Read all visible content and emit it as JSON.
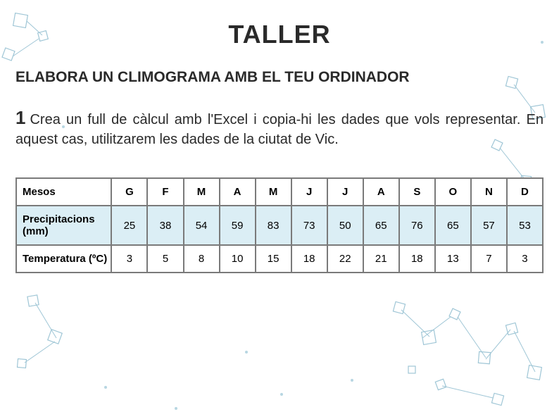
{
  "title": {
    "text": "TALLER",
    "fontsize": 36,
    "color": "#2a2a2a"
  },
  "subtitle": {
    "text": "ELABORA UN CLIMOGRAMA AMB EL TEU ORDINADOR",
    "fontsize": 21,
    "color": "#2a2a2a"
  },
  "step": {
    "num": "1",
    "num_fontsize": 26,
    "num_color": "#2a2a2a",
    "body": "Crea un full de càlcul amb l'Excel i copia-hi les dades que vols representar. En aquest cas, utilitzarem les dades de la ciutat de Vic.",
    "body_fontsize": 20,
    "body_color": "#2a2a2a"
  },
  "table": {
    "border_color": "#7a7a7a",
    "header_bg": "#ffffff",
    "row_alt_bg": "#dbeef5",
    "cell_fontsize": 15,
    "text_color": "#000000",
    "row_labels": [
      "Mesos",
      "Precipitacions (mm)",
      "Temperatura (ºC)"
    ],
    "columns": [
      "G",
      "F",
      "M",
      "A",
      "M",
      "J",
      "J",
      "A",
      "S",
      "O",
      "N",
      "D"
    ],
    "rows": [
      [
        25,
        38,
        54,
        59,
        83,
        73,
        50,
        65,
        76,
        65,
        57,
        53
      ],
      [
        3,
        5,
        8,
        10,
        15,
        18,
        22,
        21,
        18,
        13,
        7,
        3
      ]
    ],
    "row_backgrounds": [
      "#ffffff",
      "#dbeef5",
      "#ffffff"
    ]
  },
  "deco": {
    "square_stroke": "#9fc6d6",
    "line_stroke": "#9fc6d6",
    "dot_fill": "#b7d6e2"
  }
}
